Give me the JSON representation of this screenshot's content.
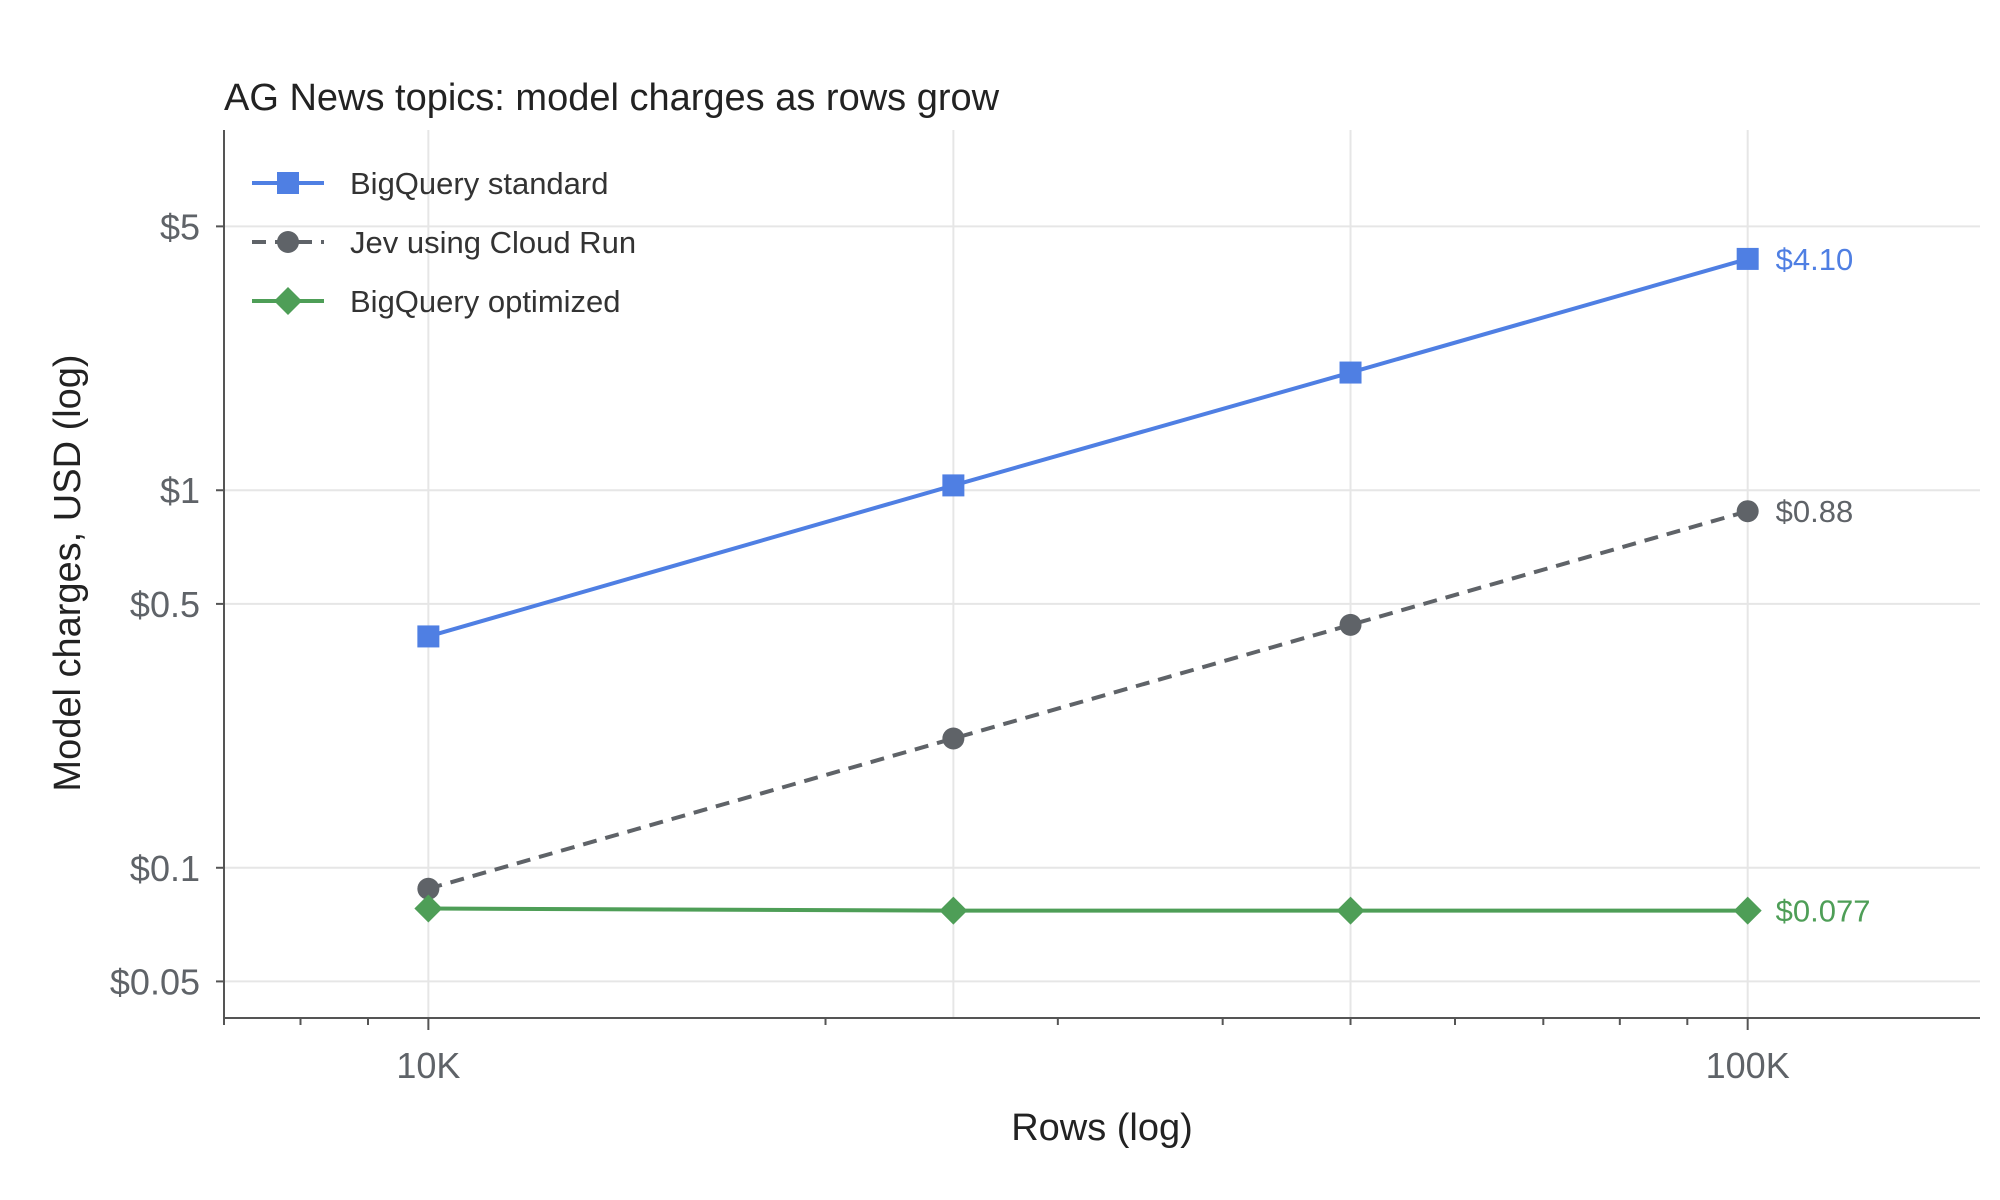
{
  "chart_data": {
    "type": "line",
    "title": "AG News topics: model charges as rows grow",
    "xlabel": "Rows (log)",
    "ylabel": "Model charges, USD (log)",
    "x_scale": "log",
    "y_scale": "log",
    "x": [
      10000,
      25000,
      50000,
      100000
    ],
    "xlim": [
      7000,
      150000
    ],
    "ylim": [
      0.04,
      9
    ],
    "x_ticks": [
      {
        "value": 10000,
        "label": "10K"
      },
      {
        "value": 100000,
        "label": "100K"
      }
    ],
    "y_ticks": [
      {
        "value": 0.05,
        "label": "$0.05"
      },
      {
        "value": 0.1,
        "label": "$0.1"
      },
      {
        "value": 0.5,
        "label": "$0.5"
      },
      {
        "value": 1,
        "label": "$1"
      },
      {
        "value": 5,
        "label": "$5"
      }
    ],
    "grid": true,
    "legend_position": "top-left",
    "series": [
      {
        "name": "BigQuery standard",
        "values": [
          0.41,
          1.03,
          2.05,
          4.1
        ],
        "color": "#4f7fe3",
        "marker": "square",
        "dash": "solid",
        "end_label": "$4.10"
      },
      {
        "name": "Jev using Cloud Run",
        "values": [
          0.088,
          0.22,
          0.44,
          0.88
        ],
        "color": "#5f6368",
        "marker": "circle",
        "dash": "dashed",
        "end_label": "$0.88"
      },
      {
        "name": "BigQuery optimized",
        "values": [
          0.078,
          0.077,
          0.077,
          0.077
        ],
        "color": "#4e9e57",
        "marker": "diamond",
        "dash": "solid",
        "end_label": "$0.077"
      }
    ]
  }
}
